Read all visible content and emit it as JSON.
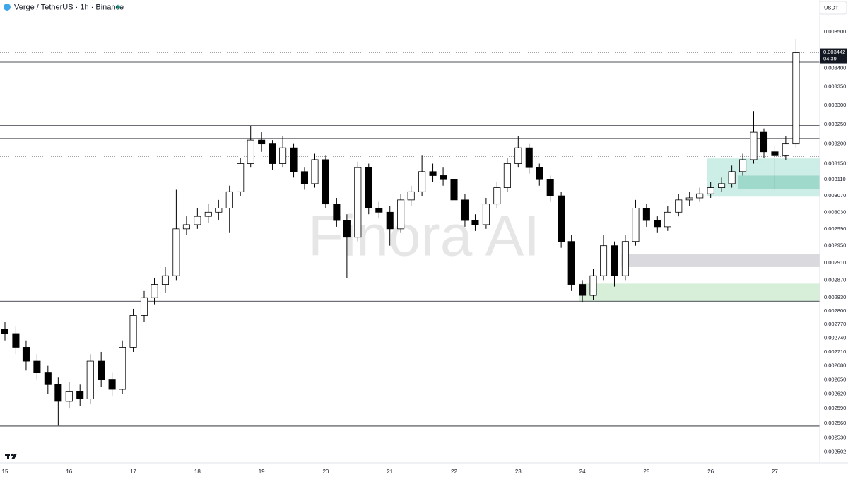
{
  "chart_data": {
    "type": "candlestick",
    "title": "Verge / TetherUS · 1h · Binance",
    "currency": "USDT",
    "watermark": "Finora AI",
    "last_price": 0.003442,
    "last_price_label": "0.003442",
    "countdown": "04:39",
    "log_scale": true,
    "grid": false,
    "up_color": "#ffffff",
    "down_color": "#000000",
    "wick_color": "#000000",
    "x": [
      15,
      15.17,
      15.33,
      15.5,
      15.67,
      15.83,
      16,
      16.17,
      16.33,
      16.5,
      16.67,
      16.83,
      17,
      17.17,
      17.33,
      17.5,
      17.67,
      17.83,
      18,
      18.17,
      18.33,
      18.5,
      18.67,
      18.83,
      19,
      19.17,
      19.33,
      19.5,
      19.67,
      19.83,
      20,
      20.17,
      20.33,
      20.5,
      20.67,
      20.83,
      21,
      21.17,
      21.33,
      21.5,
      21.67,
      21.83,
      22,
      22.17,
      22.33,
      22.5,
      22.67,
      22.83,
      23,
      23.17,
      23.33,
      23.5,
      23.67,
      23.83,
      24,
      24.17,
      24.33,
      24.5,
      24.67,
      24.83,
      25,
      25.17,
      25.33,
      25.5,
      25.67,
      25.83,
      26,
      26.17,
      26.33,
      26.5,
      26.67,
      26.83,
      27,
      27.17,
      27.33
    ],
    "open": [
      0.00276,
      0.00275,
      0.00272,
      0.00269,
      0.002665,
      0.00264,
      0.002605,
      0.002625,
      0.00261,
      0.00269,
      0.00265,
      0.00263,
      0.00272,
      0.00279,
      0.00283,
      0.00286,
      0.00288,
      0.00299,
      0.003,
      0.00302,
      0.00303,
      0.00304,
      0.00308,
      0.00315,
      0.00321,
      0.0032,
      0.00315,
      0.00319,
      0.00313,
      0.0031,
      0.00316,
      0.00305,
      0.00301,
      0.00297,
      0.00314,
      0.00304,
      0.00303,
      0.00299,
      0.00306,
      0.00308,
      0.00313,
      0.00312,
      0.00311,
      0.00306,
      0.00301,
      0.003,
      0.00305,
      0.00309,
      0.00315,
      0.00319,
      0.00314,
      0.00311,
      0.00307,
      0.00296,
      0.00286,
      0.002835,
      0.00288,
      0.00295,
      0.00288,
      0.00296,
      0.00304,
      0.00301,
      0.002995,
      0.00303,
      0.00306,
      0.003065,
      0.003075,
      0.00309,
      0.0031,
      0.00313,
      0.00316,
      0.00323,
      0.00318,
      0.00317,
      0.0032
    ],
    "high": [
      0.002775,
      0.002765,
      0.002735,
      0.002705,
      0.00268,
      0.002655,
      0.002645,
      0.00264,
      0.002705,
      0.00271,
      0.002665,
      0.002735,
      0.002805,
      0.002845,
      0.002875,
      0.0029,
      0.003085,
      0.00302,
      0.00304,
      0.00305,
      0.00306,
      0.003095,
      0.003165,
      0.003245,
      0.00323,
      0.00321,
      0.00322,
      0.0032,
      0.00314,
      0.003175,
      0.00317,
      0.003065,
      0.003025,
      0.003155,
      0.00315,
      0.003055,
      0.003045,
      0.003075,
      0.003095,
      0.00317,
      0.00315,
      0.00314,
      0.00312,
      0.003075,
      0.003025,
      0.003065,
      0.003105,
      0.003165,
      0.00322,
      0.0032,
      0.00315,
      0.00312,
      0.00308,
      0.002975,
      0.00287,
      0.002895,
      0.002975,
      0.00296,
      0.002975,
      0.00306,
      0.00305,
      0.00302,
      0.003045,
      0.003075,
      0.00308,
      0.00309,
      0.003105,
      0.003115,
      0.003145,
      0.003175,
      0.003285,
      0.00324,
      0.003195,
      0.00322,
      0.00348
    ],
    "low": [
      0.002735,
      0.002705,
      0.00267,
      0.00265,
      0.00262,
      0.002555,
      0.00259,
      0.002595,
      0.0026,
      0.002635,
      0.002615,
      0.00262,
      0.00271,
      0.002775,
      0.002815,
      0.00284,
      0.00287,
      0.002975,
      0.00299,
      0.003005,
      0.00301,
      0.00298,
      0.00307,
      0.00314,
      0.00318,
      0.003135,
      0.00314,
      0.003115,
      0.003085,
      0.00309,
      0.00304,
      0.002995,
      0.002875,
      0.00296,
      0.003025,
      0.003015,
      0.00295,
      0.00298,
      0.003045,
      0.00307,
      0.003105,
      0.003095,
      0.003045,
      0.002995,
      0.002985,
      0.00299,
      0.00304,
      0.00308,
      0.00314,
      0.003125,
      0.003095,
      0.003055,
      0.002945,
      0.002845,
      0.00282,
      0.002825,
      0.00287,
      0.002855,
      0.00287,
      0.00295,
      0.002995,
      0.00298,
      0.002985,
      0.00302,
      0.003045,
      0.003055,
      0.003065,
      0.00308,
      0.00309,
      0.00312,
      0.00315,
      0.003165,
      0.003085,
      0.00316,
      0.00319
    ],
    "close": [
      0.00275,
      0.00272,
      0.00269,
      0.002665,
      0.00264,
      0.002605,
      0.002625,
      0.00261,
      0.00269,
      0.00265,
      0.00263,
      0.00272,
      0.00279,
      0.00283,
      0.00286,
      0.00288,
      0.00299,
      0.003,
      0.00302,
      0.00303,
      0.00304,
      0.00308,
      0.00315,
      0.00321,
      0.0032,
      0.00315,
      0.00319,
      0.00313,
      0.0031,
      0.00316,
      0.00305,
      0.00301,
      0.00297,
      0.00314,
      0.00304,
      0.00303,
      0.00299,
      0.00306,
      0.00308,
      0.00313,
      0.00312,
      0.00311,
      0.00306,
      0.00301,
      0.003,
      0.00305,
      0.00309,
      0.00315,
      0.00319,
      0.00314,
      0.00311,
      0.00307,
      0.00296,
      0.00286,
      0.002835,
      0.00288,
      0.00295,
      0.00288,
      0.00296,
      0.00304,
      0.00301,
      0.002995,
      0.00303,
      0.00306,
      0.003065,
      0.003075,
      0.00309,
      0.0031,
      0.00313,
      0.00316,
      0.00323,
      0.00318,
      0.00317,
      0.0032,
      0.003442
    ],
    "xlim": [
      14.923,
      27.7
    ],
    "xticks": [
      15,
      16,
      17,
      18,
      19,
      20,
      21,
      22,
      23,
      24,
      25,
      26,
      27
    ],
    "ylim": [
      0.00248,
      0.00359
    ],
    "yticks": [
      {
        "value": 0.0035,
        "label": "0.003500"
      },
      {
        "value": 0.0034,
        "label": "0.003400"
      },
      {
        "value": 0.00335,
        "label": "0.003350"
      },
      {
        "value": 0.0033,
        "label": "0.003300"
      },
      {
        "value": 0.00325,
        "label": "0.003250"
      },
      {
        "value": 0.0032,
        "label": "0.003200"
      },
      {
        "value": 0.00315,
        "label": "0.003150"
      },
      {
        "value": 0.00311,
        "label": "0.003110"
      },
      {
        "value": 0.00307,
        "label": "0.003070"
      },
      {
        "value": 0.00303,
        "label": "0.003030"
      },
      {
        "value": 0.00299,
        "label": "0.002990"
      },
      {
        "value": 0.00295,
        "label": "0.002950"
      },
      {
        "value": 0.00291,
        "label": "0.002910"
      },
      {
        "value": 0.00287,
        "label": "0.002870"
      },
      {
        "value": 0.00283,
        "label": "0.002830"
      },
      {
        "value": 0.0028,
        "label": "0.002800"
      },
      {
        "value": 0.00277,
        "label": "0.002770"
      },
      {
        "value": 0.00274,
        "label": "0.002740"
      },
      {
        "value": 0.00271,
        "label": "0.002710"
      },
      {
        "value": 0.00268,
        "label": "0.002680"
      },
      {
        "value": 0.00265,
        "label": "0.002650"
      },
      {
        "value": 0.00262,
        "label": "0.002620"
      },
      {
        "value": 0.00259,
        "label": "0.002590"
      },
      {
        "value": 0.00256,
        "label": "0.002560"
      },
      {
        "value": 0.00253,
        "label": "0.002530"
      },
      {
        "value": 0.002502,
        "label": "0.002502"
      }
    ],
    "levels": [
      0.003416,
      0.003247,
      0.003214,
      0.002822,
      0.002554
    ],
    "dotted_levels": [
      0.003168
    ],
    "zones": [
      {
        "x0": 23.95,
        "top": 0.002862,
        "bottom": 0.002822,
        "color": "#d7eed9"
      },
      {
        "x0": 24.61,
        "top": 0.002931,
        "bottom": 0.0029,
        "color": "#dadade"
      },
      {
        "x0": 25.94,
        "top": 0.003163,
        "bottom": 0.003068,
        "color": "#cdeee6"
      },
      {
        "x0": 26.43,
        "top": 0.00312,
        "bottom": 0.003087,
        "color": "#9fd9cb"
      }
    ]
  }
}
